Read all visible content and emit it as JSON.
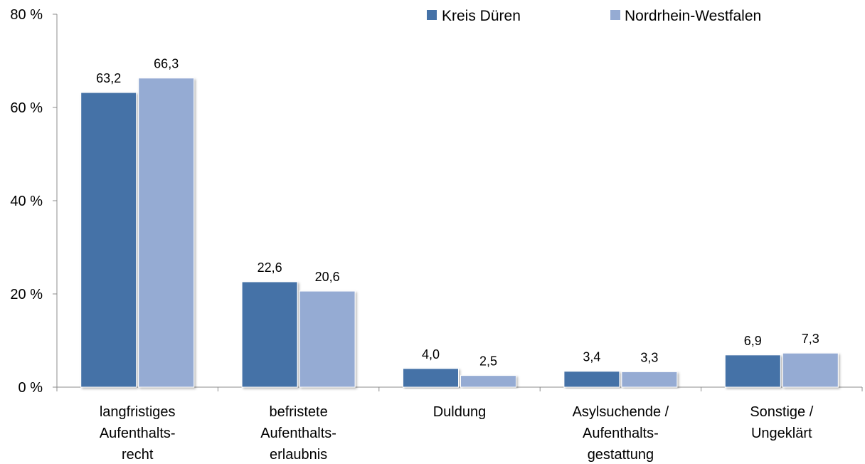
{
  "chart_data": {
    "type": "bar",
    "categories": [
      [
        "langfristiges",
        "Aufenthalts-",
        "recht"
      ],
      [
        "befristete",
        "Aufenthalts-",
        "erlaubnis"
      ],
      [
        "Duldung"
      ],
      [
        "Asylsuchende /",
        "Aufenthalts-",
        "gestattung"
      ],
      [
        "Sonstige /",
        "Ungeklärt"
      ]
    ],
    "series": [
      {
        "name": "Kreis Düren",
        "color": "#4572a7",
        "values": [
          63.2,
          22.6,
          4.0,
          3.4,
          6.9
        ],
        "labels": [
          "63,2",
          "22,6",
          "4,0",
          "3,4",
          "6,9"
        ]
      },
      {
        "name": "Nordrhein-Westfalen",
        "color": "#95abd3",
        "values": [
          66.3,
          20.6,
          2.5,
          3.3,
          7.3
        ],
        "labels": [
          "66,3",
          "20,6",
          "2,5",
          "3,3",
          "7,3"
        ]
      }
    ],
    "yticks": [
      0,
      20,
      40,
      60,
      80
    ],
    "ytick_labels": [
      "0 %",
      "20 %",
      "40 %",
      "60 %",
      "80 %"
    ],
    "ylim": [
      0,
      80
    ],
    "grid": false,
    "legend_position": "top-right"
  }
}
